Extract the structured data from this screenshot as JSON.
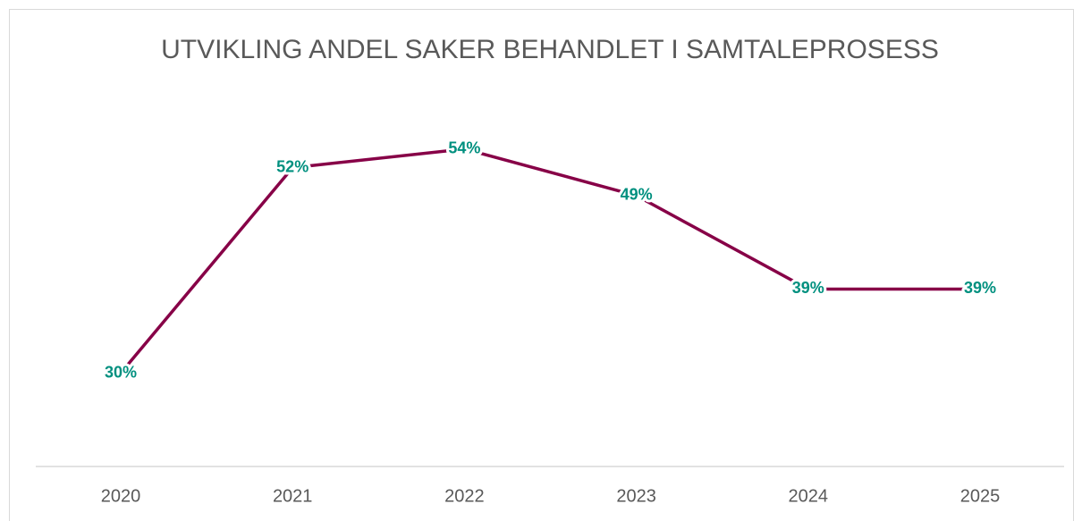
{
  "chart_data": {
    "type": "line",
    "title": "UTVIKLING ANDEL SAKER BEHANDLET I SAMTALEPROSESS",
    "categories": [
      "2020",
      "2021",
      "2022",
      "2023",
      "2024",
      "2025"
    ],
    "values": [
      30,
      52,
      54,
      49,
      39,
      39
    ],
    "value_labels": [
      "30%",
      "52%",
      "54%",
      "49%",
      "39%",
      "39%"
    ],
    "color": "#870047",
    "ylim": [
      20,
      60
    ]
  }
}
